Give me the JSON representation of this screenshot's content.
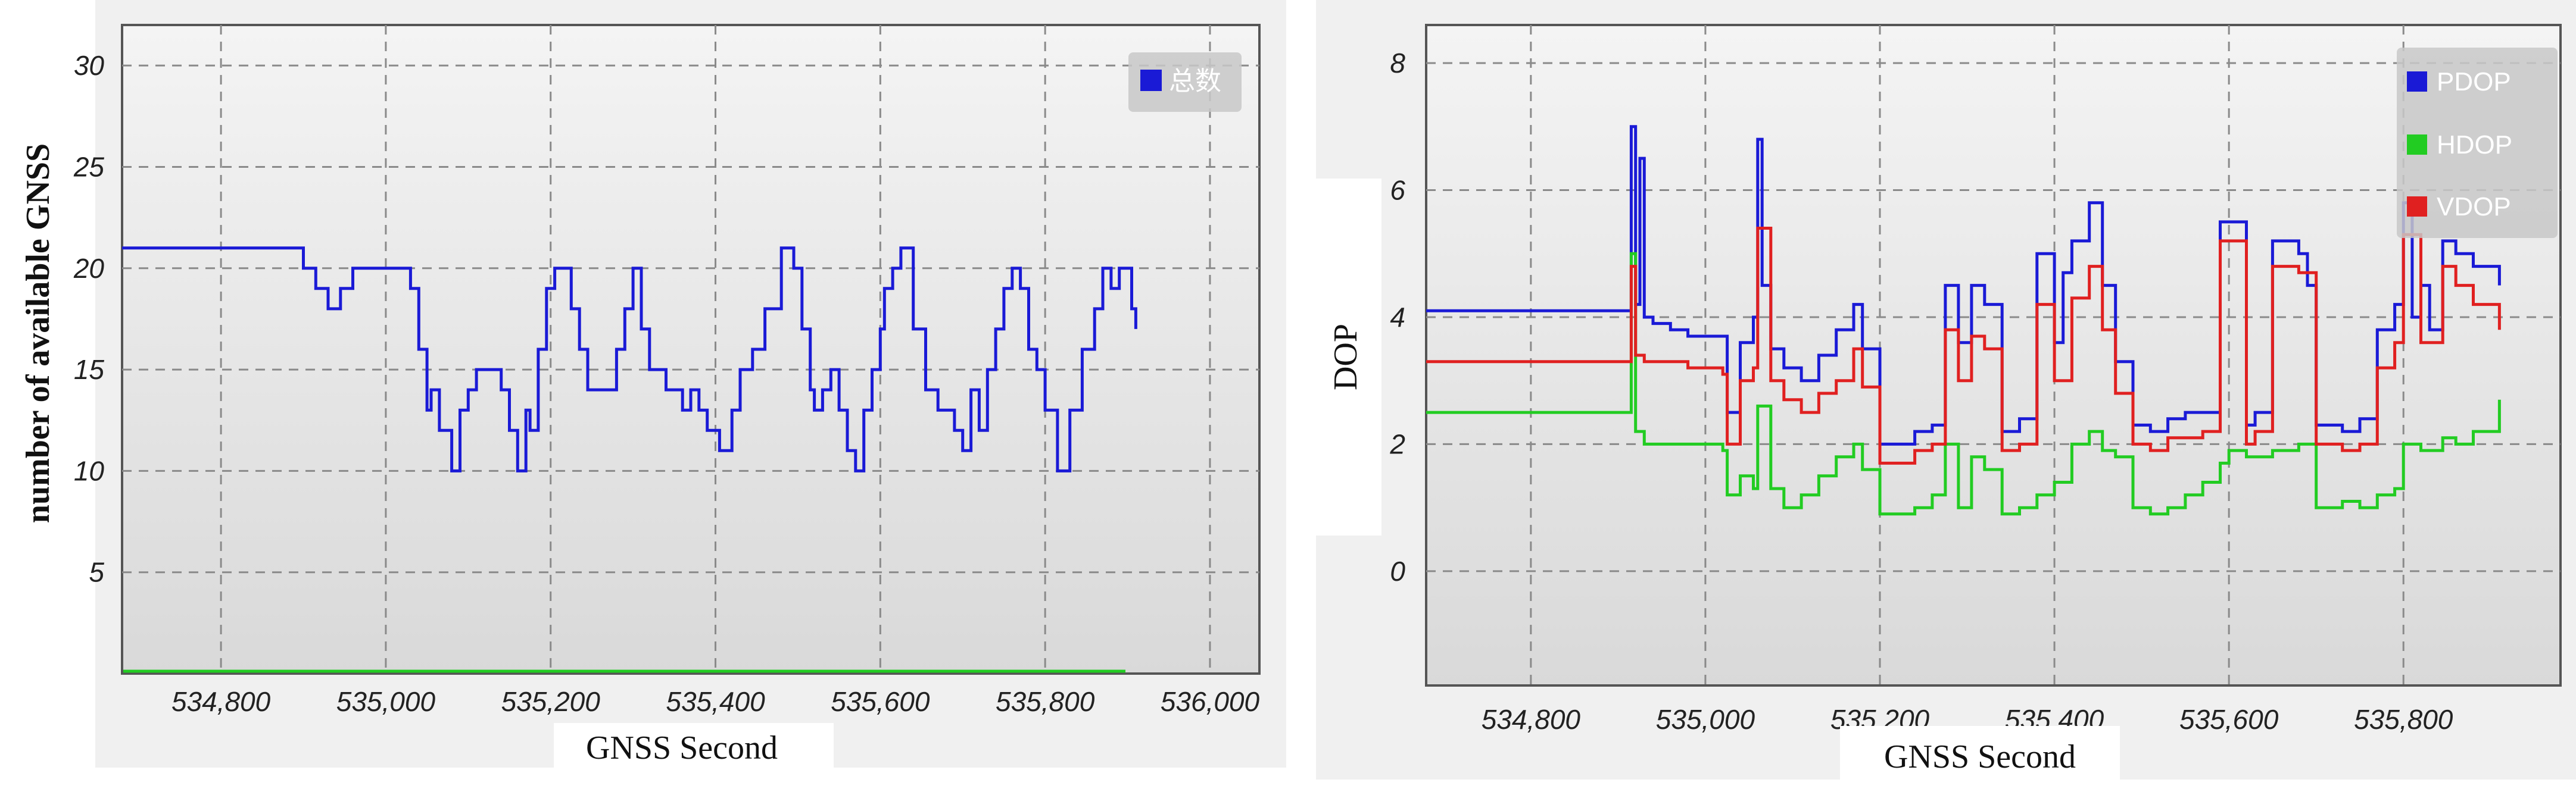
{
  "chart_data": [
    {
      "type": "line",
      "title": "",
      "xlabel": "GNSS Second",
      "ylabel": "number of  available GNSS",
      "xlim": [
        534680,
        536060
      ],
      "ylim": [
        0,
        32
      ],
      "xticks": [
        534800,
        535000,
        535200,
        535400,
        535600,
        535800,
        536000
      ],
      "xtick_labels": [
        "534,800",
        "535,000",
        "535,200",
        "535,400",
        "535,600",
        "535,800",
        "536,000"
      ],
      "yticks": [
        5,
        10,
        15,
        20,
        25,
        30
      ],
      "ytick_labels": [
        "5",
        "10",
        "15",
        "20",
        "25",
        "30"
      ],
      "grid": true,
      "legend": "top-right",
      "series": [
        {
          "name": "总数",
          "color": "#1a1ad6",
          "x": [
            534680,
            534710,
            534720,
            534760,
            534800,
            534870,
            534900,
            534915,
            534930,
            534945,
            534960,
            534975,
            535000,
            535020,
            535030,
            535040,
            535050,
            535055,
            535065,
            535080,
            535090,
            535100,
            535110,
            535125,
            535140,
            535150,
            535160,
            535170,
            535175,
            535185,
            535195,
            535205,
            535215,
            535225,
            535235,
            535245,
            535265,
            535280,
            535290,
            535300,
            535310,
            535320,
            535340,
            535360,
            535370,
            535380,
            535390,
            535405,
            535420,
            535430,
            535445,
            535460,
            535480,
            535495,
            535505,
            535515,
            535520,
            535530,
            535540,
            535550,
            535560,
            535570,
            535580,
            535590,
            535600,
            535605,
            535615,
            535625,
            535640,
            535655,
            535670,
            535690,
            535700,
            535710,
            535720,
            535730,
            535740,
            535750,
            535760,
            535770,
            535780,
            535790,
            535800,
            535815,
            535830,
            535845,
            535860,
            535870,
            535880,
            535890,
            535905,
            535910
          ],
          "values": [
            21,
            21,
            21,
            21,
            21,
            21,
            20,
            19,
            18,
            19,
            20,
            20,
            20,
            20,
            19,
            16,
            13,
            14,
            12,
            10,
            13,
            14,
            15,
            15,
            14,
            12,
            10,
            13,
            12,
            16,
            19,
            20,
            20,
            18,
            16,
            14,
            14,
            16,
            18,
            20,
            17,
            15,
            14,
            13,
            14,
            13,
            12,
            11,
            13,
            15,
            16,
            18,
            21,
            20,
            17,
            14,
            13,
            14,
            15,
            13,
            11,
            10,
            13,
            15,
            17,
            19,
            20,
            21,
            17,
            14,
            13,
            12,
            11,
            14,
            12,
            15,
            17,
            19,
            20,
            19,
            16,
            15,
            13,
            10,
            13,
            16,
            18,
            20,
            19,
            20,
            18,
            17
          ]
        }
      ]
    },
    {
      "type": "line",
      "title": "",
      "xlabel": "GNSS Second",
      "ylabel": "DOP",
      "xlim": [
        534680,
        535980
      ],
      "ylim": [
        -1.8,
        8.6
      ],
      "xticks": [
        534800,
        535000,
        535200,
        535400,
        535600,
        535800
      ],
      "xtick_labels": [
        "534,800",
        "535,000",
        "535,200",
        "535,400",
        "535,600",
        "535,800"
      ],
      "yticks": [
        0,
        2,
        4,
        6,
        8
      ],
      "ytick_labels": [
        "0",
        "2",
        "4",
        "6",
        "8"
      ],
      "grid": true,
      "legend": "top-right",
      "series": [
        {
          "name": "PDOP",
          "color": "#1a1ad6",
          "x": [
            534680,
            534860,
            534880,
            534910,
            534915,
            534920,
            534925,
            534930,
            534940,
            534960,
            534980,
            535020,
            535025,
            535040,
            535055,
            535060,
            535065,
            535075,
            535090,
            535110,
            535130,
            535150,
            535170,
            535180,
            535200,
            535215,
            535240,
            535260,
            535275,
            535290,
            535305,
            535320,
            535340,
            535360,
            535380,
            535400,
            535410,
            535420,
            535440,
            535455,
            535470,
            535490,
            535510,
            535530,
            535550,
            535570,
            535590,
            535600,
            535620,
            535630,
            535650,
            535680,
            535690,
            535700,
            535730,
            535750,
            535770,
            535790,
            535800,
            535810,
            535820,
            535830,
            535845,
            535860,
            535880,
            535910
          ],
          "values": [
            4.1,
            4.1,
            4.1,
            4.1,
            7.0,
            4.2,
            6.5,
            4.0,
            3.9,
            3.8,
            3.7,
            3.7,
            2.5,
            3.6,
            4.0,
            6.8,
            4.5,
            3.5,
            3.2,
            3.0,
            3.4,
            3.8,
            4.2,
            3.5,
            2.0,
            2.0,
            2.2,
            2.3,
            4.5,
            3.6,
            4.5,
            4.2,
            2.2,
            2.4,
            5.0,
            3.6,
            4.7,
            5.2,
            5.8,
            4.5,
            3.3,
            2.3,
            2.2,
            2.4,
            2.5,
            2.5,
            5.5,
            5.5,
            2.3,
            2.5,
            5.2,
            5.0,
            4.5,
            2.3,
            2.2,
            2.4,
            3.8,
            4.2,
            5.8,
            4.0,
            4.5,
            3.8,
            5.2,
            5.0,
            4.8,
            4.5
          ]
        },
        {
          "name": "HDOP",
          "color": "#22cc22",
          "x": [
            534680,
            534860,
            534880,
            534910,
            534915,
            534920,
            534930,
            534940,
            534980,
            535020,
            535025,
            535040,
            535055,
            535060,
            535075,
            535090,
            535110,
            535130,
            535150,
            535170,
            535180,
            535200,
            535215,
            535240,
            535260,
            535275,
            535290,
            535305,
            535320,
            535340,
            535360,
            535380,
            535400,
            535420,
            535440,
            535455,
            535470,
            535490,
            535510,
            535530,
            535550,
            535570,
            535590,
            535600,
            535620,
            535650,
            535680,
            535700,
            535730,
            535750,
            535770,
            535790,
            535800,
            535820,
            535845,
            535860,
            535880,
            535910
          ],
          "values": [
            2.5,
            2.5,
            2.5,
            2.5,
            5.0,
            2.2,
            2.0,
            2.0,
            2.0,
            1.9,
            1.2,
            1.5,
            1.3,
            2.6,
            1.3,
            1.0,
            1.2,
            1.5,
            1.8,
            2.0,
            1.6,
            0.9,
            0.9,
            1.0,
            1.2,
            2.0,
            1.0,
            1.8,
            1.6,
            0.9,
            1.0,
            1.2,
            1.4,
            2.0,
            2.2,
            1.9,
            1.8,
            1.0,
            0.9,
            1.0,
            1.2,
            1.4,
            1.7,
            1.9,
            1.8,
            1.9,
            2.0,
            1.0,
            1.1,
            1.0,
            1.2,
            1.3,
            2.0,
            1.9,
            2.1,
            2.0,
            2.2,
            2.7
          ]
        },
        {
          "name": "VDOP",
          "color": "#e02020",
          "x": [
            534680,
            534860,
            534880,
            534910,
            534915,
            534920,
            534930,
            534940,
            534980,
            535020,
            535025,
            535040,
            535055,
            535060,
            535075,
            535090,
            535110,
            535130,
            535150,
            535170,
            535180,
            535200,
            535215,
            535240,
            535260,
            535275,
            535290,
            535305,
            535320,
            535340,
            535360,
            535380,
            535400,
            535420,
            535440,
            535455,
            535470,
            535490,
            535510,
            535530,
            535550,
            535570,
            535590,
            535600,
            535620,
            535630,
            535650,
            535680,
            535700,
            535730,
            535750,
            535770,
            535790,
            535800,
            535820,
            535845,
            535860,
            535880,
            535910
          ],
          "values": [
            3.3,
            3.3,
            3.3,
            3.3,
            4.8,
            3.4,
            3.3,
            3.3,
            3.2,
            3.1,
            2.0,
            3.0,
            3.2,
            5.4,
            3.0,
            2.7,
            2.5,
            2.8,
            3.0,
            3.5,
            2.9,
            1.7,
            1.7,
            1.9,
            2.0,
            3.8,
            3.0,
            3.7,
            3.5,
            1.9,
            2.0,
            4.2,
            3.0,
            4.3,
            4.8,
            3.8,
            2.8,
            2.0,
            1.9,
            2.1,
            2.1,
            2.2,
            5.2,
            5.2,
            2.0,
            2.2,
            4.8,
            4.7,
            2.0,
            1.9,
            2.0,
            3.2,
            3.6,
            5.3,
            3.6,
            4.8,
            4.5,
            4.2,
            3.8
          ]
        }
      ]
    }
  ]
}
